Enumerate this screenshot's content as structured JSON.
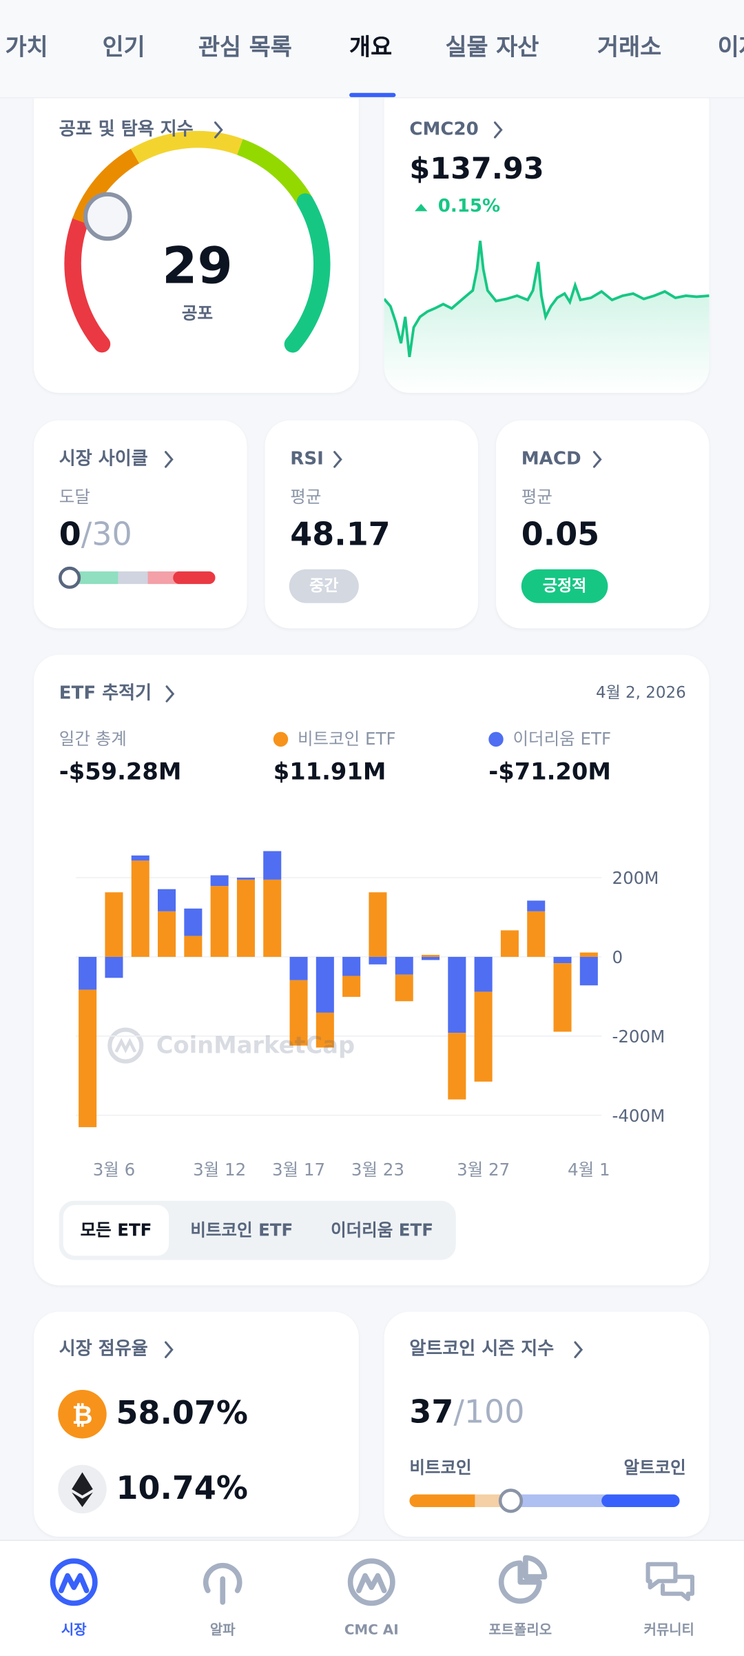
{
  "tabs": [
    "가치",
    "인기",
    "관심 목록",
    "개요",
    "실물 자산",
    "거래소",
    "이자"
  ],
  "fear_greed": {
    "title": "공포 및 탐욕 지수",
    "value": "29",
    "label": "공포"
  },
  "cmc20": {
    "title": "CMC20",
    "price": "$137.93",
    "change": "0.15%"
  },
  "market_cycle": {
    "title": "시장 사이클",
    "label": "도달",
    "value": "0",
    "total": "/30"
  },
  "rsi": {
    "title": "RSI",
    "label": "평균",
    "value": "48.17",
    "badge": "중간"
  },
  "macd": {
    "title": "MACD",
    "label": "평균",
    "value": "0.05",
    "badge": "긍정적"
  },
  "etf": {
    "title": "ETF 추적기",
    "date": "4월 2, 2026",
    "total_label": "일간 총계",
    "total": "-$59.28M",
    "btc_total": "$11.91M",
    "eth_total": "-$71.20M",
    "watermark": "CoinMarketCap",
    "filters": [
      "모든 ETF",
      "비트코인 ETF",
      "이더리움 ETF"
    ]
  },
  "chart_data": {
    "type": "bar",
    "stacked": true,
    "categories": [
      null,
      "3월 6",
      null,
      null,
      null,
      "3월 12",
      null,
      null,
      "3월 17",
      null,
      null,
      "3월 23",
      null,
      null,
      null,
      "3월 27",
      null,
      null,
      null,
      "4월 1"
    ],
    "series": [
      {
        "name": "비트코인 ETF",
        "color": "#f7931a",
        "values": [
          -347,
          163,
          243,
          115,
          53,
          179,
          195,
          195,
          -165,
          -88,
          -53,
          163,
          -67,
          5,
          -168,
          -227,
          67,
          115,
          -173,
          11
        ]
      },
      {
        "name": "이더리움 ETF",
        "color": "#4f6ef2",
        "values": [
          -83,
          -53,
          13,
          56,
          69,
          27,
          5,
          72,
          -59,
          -141,
          -48,
          -19,
          -45,
          -8,
          -192,
          -88,
          0,
          27,
          -16,
          -72
        ]
      }
    ],
    "ylim": [
      -440,
      280
    ],
    "yticks": [
      {
        "value": 200,
        "label": "200M"
      },
      0,
      {
        "value": -200,
        "label": "-200M"
      },
      {
        "value": -400,
        "label": "-400M"
      }
    ],
    "grid": true
  },
  "dominance": {
    "title": "시장 점유율",
    "btc": "58.07%",
    "eth": "10.74%"
  },
  "altseason": {
    "title": "알트코인 시즌 지수",
    "value": "37",
    "total": "/100",
    "left_label": "비트코인",
    "right_label": "알트코인"
  },
  "nav": [
    "시장",
    "알파",
    "CMC AI",
    "포트폴리오",
    "커뮤니티"
  ]
}
